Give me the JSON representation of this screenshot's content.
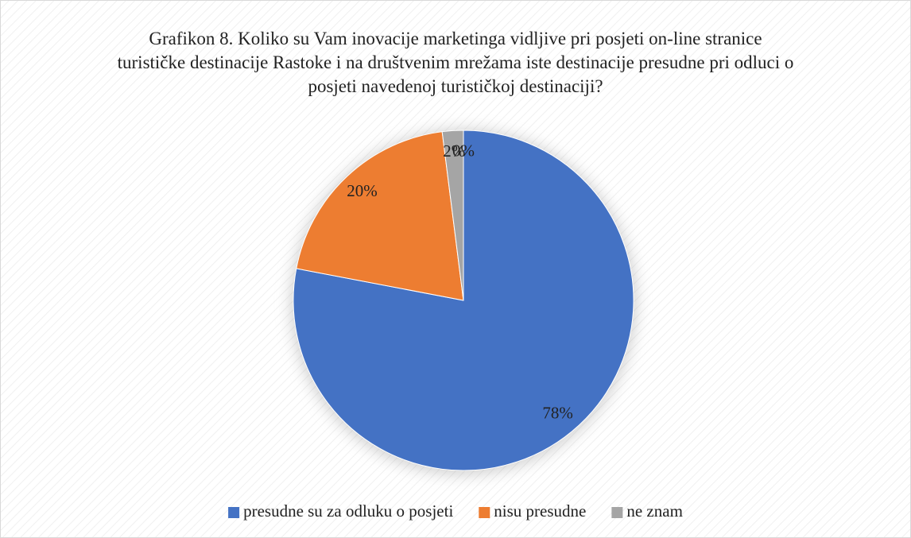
{
  "chart_data": {
    "type": "pie",
    "title": "Grafikon 8. Koliko su Vam inovacije marketinga vidljive pri posjeti on-line stranice turističke destinacije Rastoke i na društvenim mrežama iste destinacije presudne pri odluci o posjeti navedenoj turističkoj destinaciji?",
    "categories": [
      "presudne su za odluku o posjeti",
      "nisu presudne",
      "ne znam",
      null
    ],
    "values": [
      78,
      20,
      2,
      0
    ],
    "value_labels": [
      "78%",
      "20%",
      "2%",
      "0%"
    ],
    "colors": [
      "#4472c4",
      "#ed7d31",
      "#a5a5a5",
      "#ffc000"
    ],
    "legend": "bottom"
  }
}
